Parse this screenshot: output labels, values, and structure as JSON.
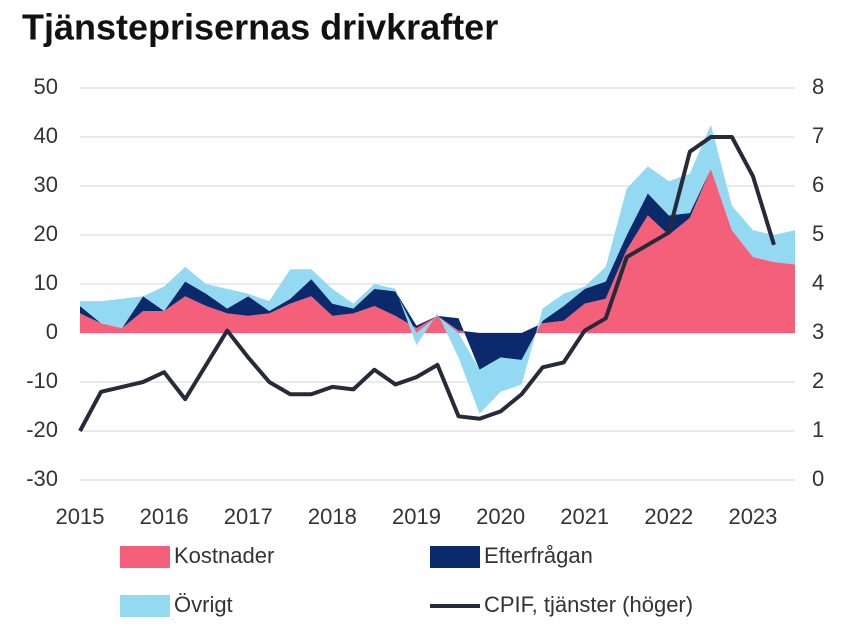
{
  "chart_data": {
    "type": "stacked-area-line",
    "title": "Tjänsteprisernas drivkrafter",
    "x": [
      2015,
      2015.25,
      2015.5,
      2015.75,
      2016,
      2016.25,
      2016.5,
      2016.75,
      2017,
      2017.25,
      2017.5,
      2017.75,
      2018,
      2018.25,
      2018.5,
      2018.75,
      2019,
      2019.25,
      2019.5,
      2019.75,
      2020,
      2020.25,
      2020.5,
      2020.75,
      2021,
      2021.25,
      2021.5,
      2021.75,
      2022,
      2022.25,
      2022.5,
      2022.75,
      2023,
      2023.25,
      2023.5
    ],
    "xlim": [
      2015,
      2023.5
    ],
    "xticks": [
      2015,
      2016,
      2017,
      2018,
      2019,
      2020,
      2021,
      2022,
      2023
    ],
    "ylim": [
      -30,
      50
    ],
    "yticks": [
      -30,
      -20,
      -10,
      0,
      10,
      20,
      30,
      40,
      50
    ],
    "y2lim": [
      0,
      8
    ],
    "y2ticks": [
      0,
      1,
      2,
      3,
      4,
      5,
      6,
      7,
      8
    ],
    "grid": true,
    "series": [
      {
        "name": "Kostnader",
        "color": "#f4607a",
        "values": [
          4,
          2,
          1,
          4.5,
          4.5,
          7.5,
          5.5,
          4,
          3.5,
          4,
          6,
          7.5,
          3.5,
          4,
          5.5,
          3.5,
          1,
          3.5,
          0.5,
          0,
          0,
          0,
          2,
          2.5,
          6,
          7,
          17,
          24,
          20,
          23.5,
          33.5,
          21,
          15.5,
          14.5,
          14
        ]
      },
      {
        "name": "Efterfrågan",
        "color": "#0a2a6b",
        "values": [
          1.5,
          0,
          0,
          3,
          0,
          3,
          2.5,
          1,
          4,
          0.5,
          1,
          3.5,
          2.5,
          1,
          3.5,
          5,
          0.5,
          0,
          2.5,
          -7.5,
          -5,
          -5.5,
          0.5,
          3,
          3,
          3.5,
          3,
          4.5,
          4,
          1,
          0,
          0,
          0,
          0,
          0
        ]
      },
      {
        "name": "Övrigt",
        "color": "#93d9f2",
        "values": [
          1,
          4.5,
          6,
          0,
          5,
          3,
          2,
          4,
          0.5,
          2,
          6,
          2,
          3,
          1,
          1,
          0.5,
          -2.5,
          0.5,
          -5,
          -9,
          -7,
          -5,
          2.5,
          2.5,
          0.5,
          3,
          9.5,
          5.5,
          7,
          8,
          9,
          5,
          5.5,
          5.5,
          7
        ]
      },
      {
        "name": "CPIF, tjänster (höger)",
        "color": "#262b3a",
        "axis": "y2",
        "values": [
          1.0,
          1.8,
          1.9,
          2.0,
          2.2,
          1.65,
          2.35,
          3.05,
          2.5,
          2.0,
          1.75,
          1.75,
          1.9,
          1.85,
          2.25,
          1.95,
          2.1,
          2.35,
          1.3,
          1.25,
          1.4,
          1.75,
          2.3,
          2.4,
          3.05,
          3.3,
          4.55,
          4.8,
          5.05,
          6.7,
          7.0,
          7.0,
          6.2,
          4.8,
          null
        ]
      }
    ]
  }
}
